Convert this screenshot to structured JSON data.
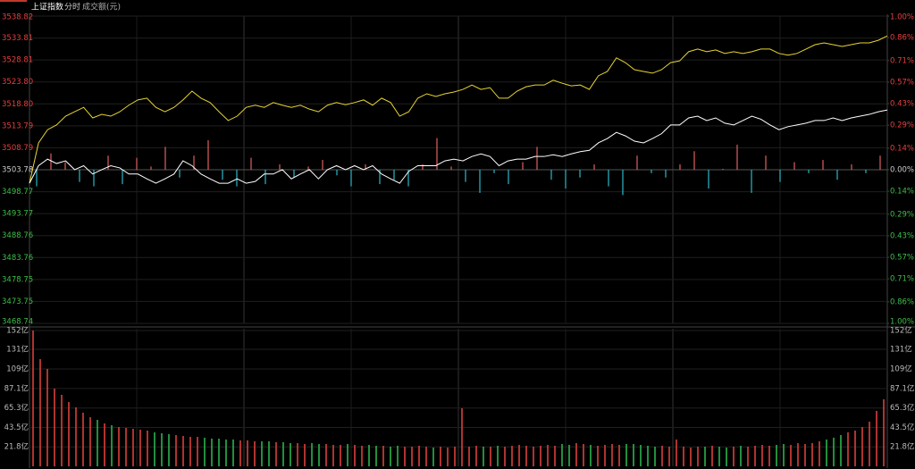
{
  "header": {
    "tabs": [
      "上证指数",
      "分时",
      "成交额(元)"
    ]
  },
  "chart_data": [
    {
      "type": "line",
      "ylim": [
        3468.74,
        3538.82
      ],
      "yticks": [
        3538.82,
        3533.81,
        3528.81,
        {
          "value": 3523.8,
          "label": "3523.80"
        },
        {
          "value": 3518.8,
          "label": "3518.80"
        },
        3513.79,
        3508.79,
        3503.78,
        3498.77,
        3493.77,
        3488.76,
        3483.76,
        3478.75,
        3473.75,
        3468.74
      ],
      "y2lim": [
        -1,
        1
      ],
      "y2ticks": [
        {
          "value": 1,
          "label": "1.00%"
        },
        {
          "value": 0.86,
          "label": "0.86%"
        },
        {
          "value": 0.71,
          "label": "0.71%"
        },
        {
          "value": 0.57,
          "label": "0.57%"
        },
        {
          "value": 0.43,
          "label": "0.43%"
        },
        {
          "value": 0.29,
          "label": "0.29%"
        },
        {
          "value": 0.14,
          "label": "0.14%"
        },
        {
          "value": 0,
          "label": "0.00%"
        },
        {
          "value": -0.14,
          "label": "0.14%"
        },
        {
          "value": -0.29,
          "label": "0.29%"
        },
        {
          "value": -0.43,
          "label": "0.43%"
        },
        {
          "value": -0.57,
          "label": "0.57%"
        },
        {
          "value": -0.71,
          "label": "0.71%"
        },
        {
          "value": -0.86,
          "label": "0.86%"
        },
        {
          "value": -1,
          "label": "1.00%"
        }
      ],
      "grid": true,
      "up_color": "#e5413e",
      "down_color": "#3fbf4a",
      "series": [
        {
          "color": "#e8d531",
          "values": [
            3500.7,
            3509.9,
            3512.9,
            3514.0,
            3516.0,
            3517.0,
            3518.0,
            3515.6,
            3516.4,
            3516.0,
            3517.0,
            3518.5,
            3519.7,
            3520.1,
            3518.0,
            3517.0,
            3518.0,
            3519.7,
            3521.7,
            3520.1,
            3519.1,
            3517.0,
            3515.0,
            3516.0,
            3518.0,
            3518.5,
            3518.0,
            3519.1,
            3518.5,
            3518.0,
            3518.5,
            3517.6,
            3517.0,
            3518.5,
            3519.1,
            3518.6,
            3519.1,
            3519.7,
            3518.5,
            3520.1,
            3519.1,
            3516.0,
            3517.0,
            3520.1,
            3521.1,
            3520.5,
            3521.1,
            3521.5,
            3522.1,
            3523.1,
            3522.1,
            3522.5,
            3520.1,
            3520.1,
            3521.7,
            3522.7,
            3523.1,
            3523.1,
            3524.2,
            3523.5,
            3522.9,
            3523.1,
            3522.1,
            3525.2,
            3526.2,
            3529.3,
            3528.2,
            3526.6,
            3526.2,
            3525.8,
            3526.6,
            3528.2,
            3528.6,
            3530.7,
            3531.3,
            3530.7,
            3531.1,
            3530.3,
            3530.7,
            3530.3,
            3530.7,
            3531.3,
            3531.3,
            3530.3,
            3529.9,
            3530.3,
            3531.3,
            3532.3,
            3532.7,
            3532.3,
            3531.9,
            3532.3,
            3532.7,
            3532.7,
            3533.3,
            3534.3
          ]
        },
        {
          "color": "#ffffff",
          "values": [
            3500.7,
            3504.7,
            3506.2,
            3505.2,
            3505.8,
            3503.8,
            3504.7,
            3502.8,
            3503.8,
            3504.7,
            3504.2,
            3502.8,
            3502.8,
            3501.7,
            3500.7,
            3501.7,
            3502.8,
            3505.8,
            3504.7,
            3502.8,
            3501.7,
            3500.7,
            3500.7,
            3501.7,
            3500.7,
            3501.1,
            3502.8,
            3502.8,
            3503.8,
            3501.7,
            3502.8,
            3503.8,
            3501.7,
            3503.8,
            3504.7,
            3503.8,
            3504.7,
            3503.8,
            3504.7,
            3502.8,
            3501.7,
            3500.7,
            3503.4,
            3504.7,
            3504.7,
            3504.7,
            3505.8,
            3506.2,
            3505.8,
            3506.8,
            3507.4,
            3506.8,
            3504.7,
            3505.8,
            3506.2,
            3506.2,
            3506.8,
            3506.8,
            3507.2,
            3506.8,
            3507.4,
            3507.9,
            3508.2,
            3509.9,
            3510.9,
            3512.3,
            3511.5,
            3510.3,
            3509.9,
            3510.9,
            3512.0,
            3514.0,
            3514.0,
            3515.6,
            3516.0,
            3515.0,
            3515.6,
            3514.4,
            3514.0,
            3515.0,
            3516.0,
            3515.3,
            3514.0,
            3512.9,
            3513.6,
            3514.0,
            3514.4,
            3515.0,
            3515.0,
            3515.6,
            3515.0,
            3515.6,
            3516.0,
            3516.4,
            3517.0,
            3517.4
          ]
        }
      ],
      "bars": {
        "up_color": "#e0605e",
        "down_color": "#2bb8c8",
        "values": [
          3500.0,
          3507.5,
          3505.5,
          3501.0,
          3500.0,
          3507.0,
          3500.5,
          3506.5,
          3504.5,
          3509.0,
          3502.0,
          3507.0,
          3510.5,
          3501.5,
          3500.0,
          3506.5,
          3500.5,
          3505.0,
          3502.0,
          3504.5,
          3506.0,
          3502.5,
          3500.0,
          3505.0,
          3500.5,
          3501.5,
          3500.0,
          3505.0,
          3511.0,
          3504.5,
          3501.0,
          3498.5,
          3503.0,
          3500.5,
          3505.5,
          3509.0,
          3501.5,
          3499.5,
          3502.0,
          3505.0,
          3500.0,
          3498.0,
          3507.0,
          3503.0,
          3502.0,
          3505.0,
          3508.0,
          3499.5,
          3504.0,
          3509.5,
          3498.5,
          3507.0,
          3501.0,
          3505.5,
          3503.0,
          3506.0,
          3501.5,
          3505.0,
          3503.0,
          3507.0
        ]
      }
    },
    {
      "type": "bar",
      "ylim": [
        0,
        152
      ],
      "yticks": [
        {
          "value": 152,
          "label": "152亿"
        },
        {
          "value": 131,
          "label": "131亿"
        },
        {
          "value": 109,
          "label": "109亿"
        },
        {
          "value": 87.1,
          "label": "87.1亿"
        },
        {
          "value": 65.3,
          "label": "65.3亿"
        },
        {
          "value": 43.5,
          "label": "43.5亿"
        },
        {
          "value": 21.8,
          "label": "21.8亿"
        }
      ],
      "grid": true,
      "up_color": "#d9403b",
      "down_color": "#2bb24c",
      "label_color": "#bbbbbb",
      "values": [
        152,
        120,
        109,
        87,
        80,
        72,
        66,
        60,
        55,
        52,
        48,
        46,
        44,
        43,
        42,
        41,
        40,
        38,
        37,
        36,
        35,
        34,
        33,
        33,
        32,
        31,
        31,
        30,
        30,
        29,
        29,
        28,
        28,
        28,
        27,
        27,
        26,
        26,
        25,
        26,
        25,
        25,
        24,
        24,
        25,
        24,
        23,
        24,
        23,
        23,
        22,
        23,
        22,
        22,
        23,
        22,
        21,
        22,
        21,
        22,
        65,
        22,
        23,
        22,
        22,
        23,
        22,
        23,
        24,
        23,
        22,
        23,
        24,
        23,
        25,
        24,
        26,
        25,
        24,
        23,
        24,
        25,
        24,
        25,
        25,
        24,
        23,
        22,
        23,
        22,
        30,
        22,
        21,
        22,
        22,
        23,
        22,
        21,
        22,
        23,
        22,
        23,
        24,
        23,
        24,
        25,
        24,
        26,
        25,
        26,
        28,
        30,
        32,
        35,
        38,
        40,
        44,
        50,
        62,
        75
      ]
    }
  ]
}
